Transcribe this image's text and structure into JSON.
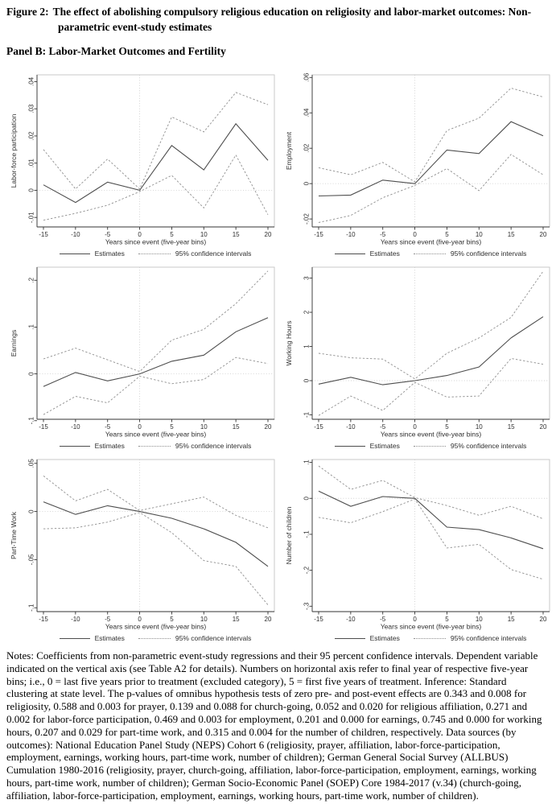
{
  "header": {
    "figure_label": "Figure 2:",
    "figure_title": "The effect of abolishing compulsory religious education on religiosity and labor-market outcomes: Non-parametric event-study estimates",
    "panel_label": "Panel B: Labor-Market Outcomes and Fertility"
  },
  "notes": "Notes: Coefficients from non-parametric event-study regressions and their 95 percent confidence intervals. Dependent variable indicated on the vertical axis (see Table A2 for details). Numbers on horizontal axis refer to final year of respective five-year bins; i.e., 0 = last five years prior to treatment (excluded category), 5 = first five years of treatment. Inference: Standard clustering at state level. The p-values of omnibus hypothesis tests of zero pre- and post-event effects are 0.343 and 0.008 for religiosity, 0.588 and 0.003 for prayer, 0.139 and 0.088 for church-going, 0.052 and 0.020 for religious affiliation, 0.271 and 0.002 for labor-force participation, 0.469 and 0.003 for employment, 0.201 and 0.000 for earnings, 0.745 and 0.000 for working hours, 0.207 and 0.029 for part-time work, and 0.315 and 0.004 for the number of children, respectively. Data sources (by outcomes): National Education Panel Study (NEPS) Cohort 6 (religiosity, prayer, affiliation, labor-force-participation, employment, earnings, working hours, part-time work, number of children); German General Social Survey (ALLBUS) Cumulation 1980-2016 (religiosity, prayer, church-going, affiliation, labor-force-participation, employment, earnings, working hours, part-time work, number of children); German Socio-Economic Panel (SOEP) Core 1984-2017 (v.34) (church-going, affiliation, labor-force-participation, employment, earnings, working hours, part-time work, number of children).",
  "chart_data": [
    {
      "type": "line",
      "ylabel": "Labor-force participation",
      "xlabel": "Years since event (five-year bins)",
      "x": [
        -15,
        -10,
        -5,
        0,
        5,
        10,
        15,
        20
      ],
      "xtick_labels": [
        "-15",
        "-10",
        "-5",
        "0",
        "5",
        "10",
        "15",
        "20"
      ],
      "ylim": [
        -0.0135,
        0.0425
      ],
      "ytick_values": [
        -0.01,
        0,
        0.01,
        0.02,
        0.03,
        0.04
      ],
      "ytick_labels": [
        "-.01",
        "0",
        ".01",
        ".02",
        ".03",
        ".04"
      ],
      "reference_lines": {
        "vertical_x": 0,
        "horizontal_y": 0
      },
      "legend": [
        "Estimates",
        "95% confidence intervals"
      ],
      "series": [
        {
          "name": "Estimates",
          "style": "solid",
          "values": [
            0.002,
            -0.0045,
            0.003,
            0,
            0.0165,
            0.0075,
            0.0245,
            0.011
          ]
        },
        {
          "name": "95% CI upper",
          "style": "dotted",
          "values": [
            0.015,
            0.0005,
            0.0115,
            0.0005,
            0.027,
            0.0215,
            0.036,
            0.0315
          ]
        },
        {
          "name": "95% CI lower",
          "style": "dotted",
          "values": [
            -0.011,
            -0.0085,
            -0.0055,
            -0.0005,
            0.0055,
            -0.0065,
            0.013,
            -0.009
          ]
        }
      ]
    },
    {
      "type": "line",
      "ylabel": "Employment",
      "xlabel": "Years since event (five-year bins)",
      "x": [
        -15,
        -10,
        -5,
        0,
        5,
        10,
        15,
        20
      ],
      "xtick_labels": [
        "-15",
        "-10",
        "-5",
        "0",
        "5",
        "10",
        "15",
        "20"
      ],
      "ylim": [
        -0.0245,
        0.0615
      ],
      "ytick_values": [
        -0.02,
        0,
        0.02,
        0.04,
        0.06
      ],
      "ytick_labels": [
        "-.02",
        "0",
        ".02",
        ".04",
        ".06"
      ],
      "reference_lines": {
        "vertical_x": 0,
        "horizontal_y": 0
      },
      "legend": [
        "Estimates",
        "95% confidence intervals"
      ],
      "series": [
        {
          "name": "Estimates",
          "style": "solid",
          "values": [
            -0.007,
            -0.0065,
            0.002,
            0,
            0.019,
            0.017,
            0.035,
            0.027
          ]
        },
        {
          "name": "95% CI upper",
          "style": "dotted",
          "values": [
            0.009,
            0.005,
            0.012,
            0.001,
            0.03,
            0.037,
            0.054,
            0.049
          ]
        },
        {
          "name": "95% CI lower",
          "style": "dotted",
          "values": [
            -0.022,
            -0.018,
            -0.008,
            -0.001,
            0.0085,
            -0.004,
            0.0165,
            0.005
          ]
        }
      ]
    },
    {
      "type": "line",
      "ylabel": "Earnings",
      "xlabel": "Years since event (five-year bins)",
      "x": [
        -15,
        -10,
        -5,
        0,
        5,
        10,
        15,
        20
      ],
      "xtick_labels": [
        "-15",
        "-10",
        "-5",
        "0",
        "5",
        "10",
        "15",
        "20"
      ],
      "ylim": [
        -0.097,
        0.228
      ],
      "ytick_values": [
        -0.1,
        0,
        0.1,
        0.2
      ],
      "ytick_labels": [
        "-.1",
        "0",
        ".1",
        ".2"
      ],
      "reference_lines": {
        "vertical_x": 0,
        "horizontal_y": 0
      },
      "legend": [
        "Estimates",
        "95% confidence intervals"
      ],
      "series": [
        {
          "name": "Estimates",
          "style": "solid",
          "values": [
            -0.027,
            0.003,
            -0.015,
            0,
            0.027,
            0.04,
            0.09,
            0.12
          ]
        },
        {
          "name": "95% CI upper",
          "style": "dotted",
          "values": [
            0.032,
            0.055,
            0.03,
            0.005,
            0.072,
            0.095,
            0.15,
            0.22
          ]
        },
        {
          "name": "95% CI lower",
          "style": "dotted",
          "values": [
            -0.087,
            -0.048,
            -0.062,
            -0.005,
            -0.021,
            -0.012,
            0.035,
            0.022
          ]
        }
      ]
    },
    {
      "type": "line",
      "ylabel": "Working Hours",
      "xlabel": "Years since event (five-year bins)",
      "x": [
        -15,
        -10,
        -5,
        0,
        5,
        10,
        15,
        20
      ],
      "xtick_labels": [
        "-15",
        "-10",
        "-5",
        "0",
        "5",
        "10",
        "15",
        "20"
      ],
      "ylim": [
        -1.13,
        3.32
      ],
      "ytick_values": [
        -1,
        0,
        1,
        2,
        3
      ],
      "ytick_labels": [
        "-1",
        "0",
        "1",
        "2",
        "3"
      ],
      "reference_lines": {
        "vertical_x": 0,
        "horizontal_y": 0
      },
      "legend": [
        "Estimates",
        "95% confidence intervals"
      ],
      "series": [
        {
          "name": "Estimates",
          "style": "solid",
          "values": [
            -0.1,
            0.1,
            -0.12,
            0,
            0.15,
            0.4,
            1.25,
            1.87
          ]
        },
        {
          "name": "95% CI upper",
          "style": "dotted",
          "values": [
            0.8,
            0.67,
            0.63,
            0.05,
            0.8,
            1.25,
            1.85,
            3.2
          ]
        },
        {
          "name": "95% CI lower",
          "style": "dotted",
          "values": [
            -1.02,
            -0.45,
            -0.87,
            -0.05,
            -0.48,
            -0.45,
            0.65,
            0.48
          ]
        }
      ]
    },
    {
      "type": "line",
      "ylabel": "Part-Time Work",
      "xlabel": "Years since event (five-year bins)",
      "x": [
        -15,
        -10,
        -5,
        0,
        5,
        10,
        15,
        20
      ],
      "xtick_labels": [
        "-15",
        "-10",
        "-5",
        "0",
        "5",
        "10",
        "15",
        "20"
      ],
      "ylim": [
        -0.104,
        0.054
      ],
      "ytick_values": [
        -0.1,
        -0.05,
        0,
        0.05
      ],
      "ytick_labels": [
        "-.1",
        "-.05",
        "0",
        ".05"
      ],
      "reference_lines": {
        "vertical_x": 0,
        "horizontal_y": 0
      },
      "legend": [
        "Estimates",
        "95% confidence intervals"
      ],
      "series": [
        {
          "name": "Estimates",
          "style": "solid",
          "values": [
            0.01,
            -0.003,
            0.006,
            0,
            -0.007,
            -0.018,
            -0.032,
            -0.057
          ]
        },
        {
          "name": "95% CI upper",
          "style": "dotted",
          "values": [
            0.037,
            0.011,
            0.023,
            0.001,
            0.008,
            0.015,
            -0.004,
            -0.017
          ]
        },
        {
          "name": "95% CI lower",
          "style": "dotted",
          "values": [
            -0.018,
            -0.017,
            -0.011,
            -0.001,
            -0.022,
            -0.051,
            -0.057,
            -0.097
          ]
        }
      ]
    },
    {
      "type": "line",
      "ylabel": "Number of children",
      "xlabel": "Years since event (five-year bins)",
      "x": [
        -15,
        -10,
        -5,
        0,
        5,
        10,
        15,
        20
      ],
      "xtick_labels": [
        "-15",
        "-10",
        "-5",
        "0",
        "5",
        "10",
        "15",
        "20"
      ],
      "ylim": [
        -0.315,
        0.108
      ],
      "ytick_values": [
        -0.3,
        -0.2,
        -0.1,
        0,
        0.1
      ],
      "ytick_labels": [
        "-.3",
        "-.2",
        "-.1",
        "0",
        ".1"
      ],
      "reference_lines": {
        "vertical_x": 0,
        "horizontal_y": 0
      },
      "legend": [
        "Estimates",
        "95% confidence intervals"
      ],
      "series": [
        {
          "name": "Estimates",
          "style": "solid",
          "values": [
            0.02,
            -0.022,
            0.005,
            0,
            -0.08,
            -0.087,
            -0.11,
            -0.14
          ]
        },
        {
          "name": "95% CI upper",
          "style": "dotted",
          "values": [
            0.09,
            0.025,
            0.05,
            0.002,
            -0.02,
            -0.047,
            -0.022,
            -0.057
          ]
        },
        {
          "name": "95% CI lower",
          "style": "dotted",
          "values": [
            -0.053,
            -0.068,
            -0.037,
            -0.002,
            -0.138,
            -0.128,
            -0.198,
            -0.225
          ]
        }
      ]
    }
  ]
}
